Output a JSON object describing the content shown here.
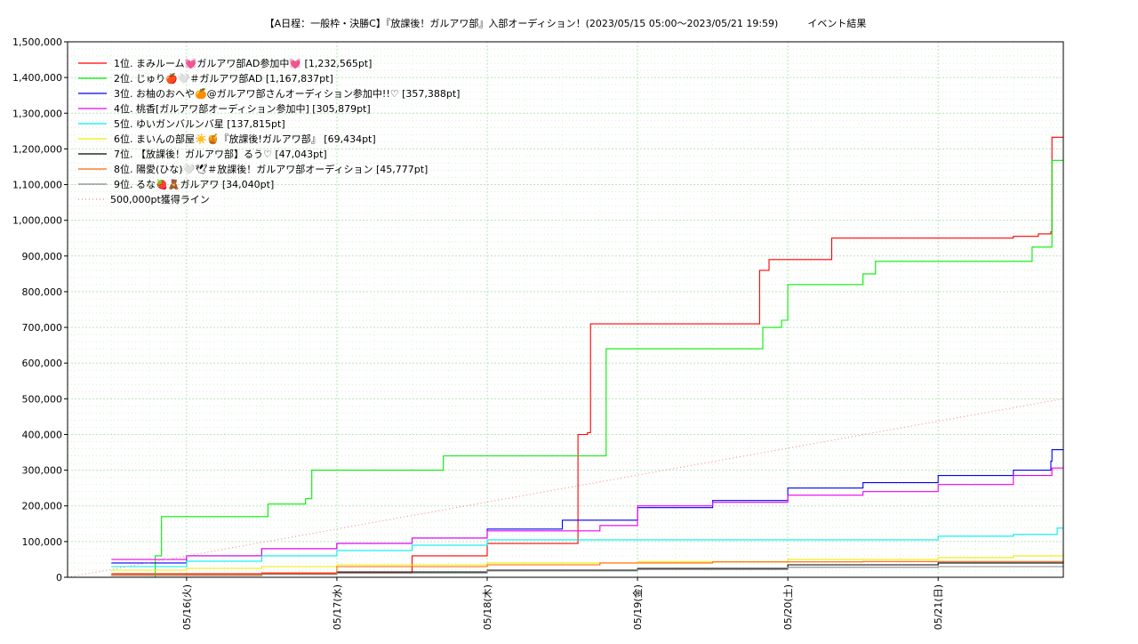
{
  "chart_data": {
    "type": "line",
    "title": "【A日程：一般枠・決勝C】『放課後！ガルアワ部』入部オーディション！(2023/05/15 05:00〜2023/05/21 19:59)　　　イベント結果",
    "xlabel": "",
    "ylabel": "",
    "ylim": [
      0,
      1500000
    ],
    "xlim": [
      "2023/05/15 05:00",
      "2023/05/21 19:59"
    ],
    "x_tick_labels": [
      "05/16(火)",
      "05/17(水)",
      "05/18(木)",
      "05/19(金)",
      "05/20(土)",
      "05/21(日)"
    ],
    "y_tick_labels": [
      "0",
      "100,000",
      "200,000",
      "300,000",
      "400,000",
      "500,000",
      "600,000",
      "700,000",
      "800,000",
      "900,000",
      "1,000,000",
      "1,100,000",
      "1,200,000",
      "1,300,000",
      "1,400,000",
      "1,500,000"
    ],
    "grid": true,
    "legend_position": "top-left",
    "series": [
      {
        "name": "1位. まみルーム💓ガルアワ部AD参加中💓 [1,232,565pt]",
        "color": "#ff0000",
        "points": [
          [
            "2023/05/15 12:00",
            10000
          ],
          [
            "2023/05/16 12:00",
            12000
          ],
          [
            "2023/05/17 12:00",
            60000
          ],
          [
            "2023/05/18 00:00",
            95000
          ],
          [
            "2023/05/18 14:00",
            95000
          ],
          [
            "2023/05/18 14:30",
            400000
          ],
          [
            "2023/05/18 16:00",
            405000
          ],
          [
            "2023/05/18 16:30",
            710000
          ],
          [
            "2023/05/19 19:00",
            710000
          ],
          [
            "2023/05/19 19:30",
            860000
          ],
          [
            "2023/05/19 21:00",
            890000
          ],
          [
            "2023/05/20 06:00",
            890000
          ],
          [
            "2023/05/20 07:00",
            950000
          ],
          [
            "2023/05/21 12:00",
            955000
          ],
          [
            "2023/05/21 16:00",
            962000
          ],
          [
            "2023/05/21 18:00",
            968000
          ],
          [
            "2023/05/21 18:10",
            1232565
          ],
          [
            "2023/05/21 19:59",
            1232565
          ]
        ]
      },
      {
        "name": "2位. じゅり🍎🤍＃ガルアワ部AD [1,167,837pt]",
        "color": "#00ee00",
        "points": [
          [
            "2023/05/15 12:00",
            0
          ],
          [
            "2023/05/15 19:00",
            60000
          ],
          [
            "2023/05/15 20:00",
            170000
          ],
          [
            "2023/05/16 12:00",
            170000
          ],
          [
            "2023/05/16 13:00",
            205000
          ],
          [
            "2023/05/16 19:00",
            220000
          ],
          [
            "2023/05/16 20:00",
            300000
          ],
          [
            "2023/05/17 16:00",
            300000
          ],
          [
            "2023/05/17 17:00",
            340000
          ],
          [
            "2023/05/18 17:00",
            340000
          ],
          [
            "2023/05/18 19:00",
            640000
          ],
          [
            "2023/05/19 19:00",
            640000
          ],
          [
            "2023/05/19 20:00",
            700000
          ],
          [
            "2023/05/19 23:00",
            720000
          ],
          [
            "2023/05/20 00:00",
            820000
          ],
          [
            "2023/05/20 10:00",
            820000
          ],
          [
            "2023/05/20 12:00",
            850000
          ],
          [
            "2023/05/20 14:00",
            885000
          ],
          [
            "2023/05/21 14:00",
            885000
          ],
          [
            "2023/05/21 15:00",
            925000
          ],
          [
            "2023/05/21 18:00",
            925000
          ],
          [
            "2023/05/21 18:10",
            1167837
          ],
          [
            "2023/05/21 19:59",
            1167837
          ]
        ]
      },
      {
        "name": "3位. お柚のおへや🍊@ガルアワ部さんオーディション参加中!!♡ [357,388pt]",
        "color": "#0000ee",
        "points": [
          [
            "2023/05/15 12:00",
            40000
          ],
          [
            "2023/05/16 00:00",
            60000
          ],
          [
            "2023/05/16 12:00",
            80000
          ],
          [
            "2023/05/17 00:00",
            95000
          ],
          [
            "2023/05/17 12:00",
            110000
          ],
          [
            "2023/05/18 00:00",
            135000
          ],
          [
            "2023/05/18 12:00",
            160000
          ],
          [
            "2023/05/19 00:00",
            195000
          ],
          [
            "2023/05/19 12:00",
            215000
          ],
          [
            "2023/05/20 00:00",
            250000
          ],
          [
            "2023/05/20 12:00",
            265000
          ],
          [
            "2023/05/21 00:00",
            285000
          ],
          [
            "2023/05/21 12:00",
            300000
          ],
          [
            "2023/05/21 18:00",
            325000
          ],
          [
            "2023/05/21 18:10",
            357388
          ],
          [
            "2023/05/21 19:59",
            357388
          ]
        ]
      },
      {
        "name": "4位. 桃香[ガルアワ部オーディション参加中] [305,879pt]",
        "color": "#ee00ee",
        "points": [
          [
            "2023/05/15 12:00",
            50000
          ],
          [
            "2023/05/16 00:00",
            60000
          ],
          [
            "2023/05/16 12:00",
            80000
          ],
          [
            "2023/05/17 00:00",
            95000
          ],
          [
            "2023/05/17 12:00",
            110000
          ],
          [
            "2023/05/18 00:00",
            130000
          ],
          [
            "2023/05/18 18:00",
            145000
          ],
          [
            "2023/05/19 00:00",
            200000
          ],
          [
            "2023/05/19 12:00",
            210000
          ],
          [
            "2023/05/20 00:00",
            230000
          ],
          [
            "2023/05/20 12:00",
            240000
          ],
          [
            "2023/05/21 00:00",
            260000
          ],
          [
            "2023/05/21 12:00",
            285000
          ],
          [
            "2023/05/21 18:00",
            285000
          ],
          [
            "2023/05/21 18:10",
            305879
          ],
          [
            "2023/05/21 19:59",
            305879
          ]
        ]
      },
      {
        "name": "5位. ゆいガンバルンバ星 [137,815pt]",
        "color": "#00eeee",
        "points": [
          [
            "2023/05/15 12:00",
            30000
          ],
          [
            "2023/05/16 00:00",
            45000
          ],
          [
            "2023/05/16 12:00",
            60000
          ],
          [
            "2023/05/17 00:00",
            75000
          ],
          [
            "2023/05/17 12:00",
            90000
          ],
          [
            "2023/05/18 00:00",
            105000
          ],
          [
            "2023/05/20 12:00",
            105000
          ],
          [
            "2023/05/21 00:00",
            115000
          ],
          [
            "2023/05/21 12:00",
            120000
          ],
          [
            "2023/05/21 19:00",
            137815
          ],
          [
            "2023/05/21 19:59",
            137815
          ]
        ]
      },
      {
        "name": "6位. まいんの部屋☀️🍯『放課後!ガルアワ部』 [69,434pt]",
        "color": "#eeee00",
        "points": [
          [
            "2023/05/15 12:00",
            20000
          ],
          [
            "2023/05/16 00:00",
            25000
          ],
          [
            "2023/05/16 12:00",
            30000
          ],
          [
            "2023/05/17 00:00",
            35000
          ],
          [
            "2023/05/18 00:00",
            40000
          ],
          [
            "2023/05/19 00:00",
            43000
          ],
          [
            "2023/05/20 00:00",
            50000
          ],
          [
            "2023/05/21 00:00",
            55000
          ],
          [
            "2023/05/21 12:00",
            60000
          ],
          [
            "2023/05/21 19:59",
            69434
          ]
        ]
      },
      {
        "name": "7位. 【放課後！ガルアワ部】るう♡ [47,043pt]",
        "color": "#000000",
        "points": [
          [
            "2023/05/15 12:00",
            5000
          ],
          [
            "2023/05/16 00:00",
            5000
          ],
          [
            "2023/05/16 12:00",
            10000
          ],
          [
            "2023/05/17 00:00",
            15000
          ],
          [
            "2023/05/18 00:00",
            20000
          ],
          [
            "2023/05/19 00:00",
            25000
          ],
          [
            "2023/05/20 00:00",
            35000
          ],
          [
            "2023/05/21 00:00",
            40000
          ],
          [
            "2023/05/21 19:59",
            47043
          ]
        ]
      },
      {
        "name": "8位. 陽愛(ひな)🤍🕊＃放課後！ガルアワ部オーディション [45,777pt]",
        "color": "#ff6600",
        "points": [
          [
            "2023/05/15 12:00",
            8000
          ],
          [
            "2023/05/16 12:00",
            10000
          ],
          [
            "2023/05/17 00:00",
            30000
          ],
          [
            "2023/05/18 00:00",
            35000
          ],
          [
            "2023/05/18 18:00",
            40000
          ],
          [
            "2023/05/19 12:00",
            43000
          ],
          [
            "2023/05/20 12:00",
            44000
          ],
          [
            "2023/05/21 19:59",
            45777
          ]
        ]
      },
      {
        "name": "9位. るな🍓🧸ガルアワ [34,040pt]",
        "color": "#888888",
        "points": [
          [
            "2023/05/15 12:00",
            5000
          ],
          [
            "2023/05/16 00:00",
            5000
          ],
          [
            "2023/05/16 12:00",
            8000
          ],
          [
            "2023/05/17 00:00",
            12000
          ],
          [
            "2023/05/18 00:00",
            18000
          ],
          [
            "2023/05/19 00:00",
            22000
          ],
          [
            "2023/05/20 00:00",
            28000
          ],
          [
            "2023/05/21 00:00",
            30000
          ],
          [
            "2023/05/21 19:59",
            34040
          ]
        ]
      },
      {
        "name": "500,000pt獲得ライン",
        "color": "#ff8888",
        "dotted": true,
        "points": [
          [
            "2023/05/15 05:00",
            0
          ],
          [
            "2023/05/21 19:59",
            500000
          ]
        ]
      }
    ]
  }
}
